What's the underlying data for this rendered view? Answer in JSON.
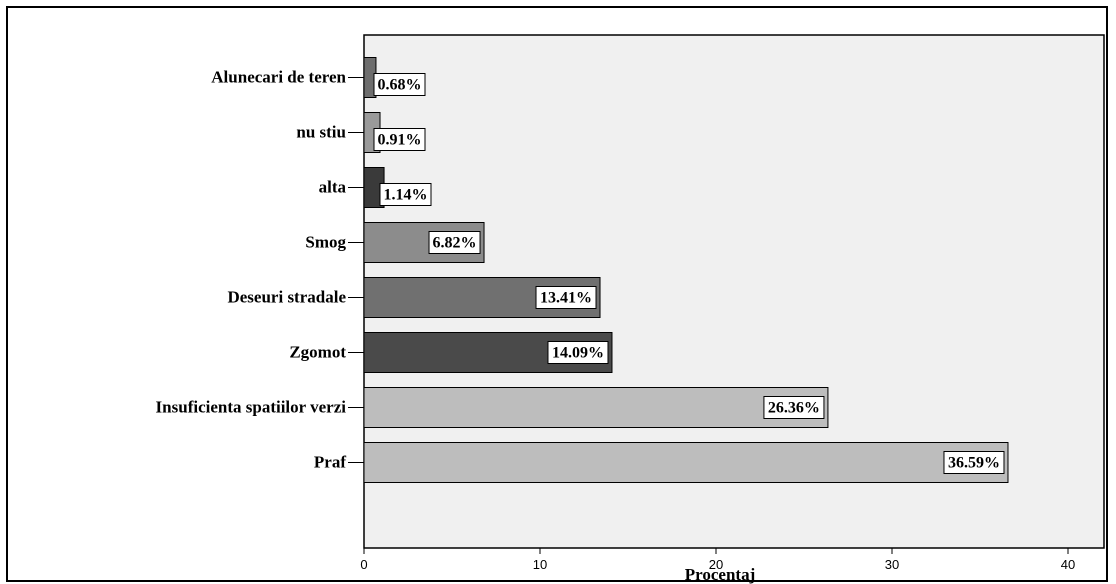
{
  "chart_data": {
    "type": "bar",
    "orientation": "horizontal",
    "title": "",
    "xlabel": "Procentaj",
    "ylabel": "",
    "xlim": [
      0,
      40
    ],
    "xticks": [
      "0",
      "10",
      "20",
      "30",
      "40"
    ],
    "grid": false,
    "plot_background": "#f0f0f0",
    "categories": [
      "Alunecari de teren",
      "nu stiu",
      "alta",
      "Smog",
      "Deseuri stradale",
      "Zgomot",
      "Insuficienta spatiilor verzi",
      "Praf"
    ],
    "values": [
      0.68,
      0.91,
      1.14,
      6.82,
      13.41,
      14.09,
      26.36,
      36.59
    ],
    "data_labels": [
      "0.68%",
      "0.91%",
      "1.14%",
      "6.82%",
      "13.41%",
      "14.09%",
      "26.36%",
      "36.59%"
    ],
    "colors": [
      "#6e6e6e",
      "#9a9a9a",
      "#3a3a3a",
      "#8c8c8c",
      "#707070",
      "#4a4a4a",
      "#bdbdbd",
      "#bdbdbd"
    ]
  }
}
